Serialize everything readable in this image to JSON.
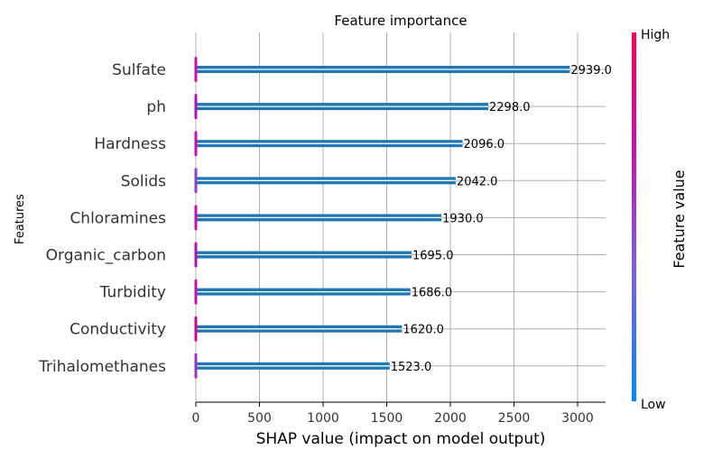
{
  "chart_data": {
    "type": "bar",
    "title": "Feature importance",
    "xlabel": "SHAP value (impact on model output)",
    "ylabel": "Features",
    "categories": [
      "Sulfate",
      "ph",
      "Hardness",
      "Solids",
      "Chloramines",
      "Organic_carbon",
      "Turbidity",
      "Conductivity",
      "Trihalomethanes"
    ],
    "values": [
      2939.0,
      2298.0,
      2096.0,
      2042.0,
      1930.0,
      1695.0,
      1686.0,
      1620.0,
      1523.0
    ],
    "value_labels": [
      "2939.0",
      "2298.0",
      "2096.0",
      "2042.0",
      "1930.0",
      "1695.0",
      "1686.0",
      "1620.0",
      "1523.0"
    ],
    "xticks": [
      0,
      500,
      1000,
      1500,
      2000,
      2500,
      3000
    ],
    "xlim": [
      0,
      3200
    ],
    "grid": true,
    "bar_color": "#1f77b4",
    "colorbar": {
      "label": "Feature value",
      "high_label": "High",
      "low_label": "Low",
      "colors": [
        "#008afb",
        "#7d5fde",
        "#c910ab",
        "#ff0052"
      ]
    }
  }
}
